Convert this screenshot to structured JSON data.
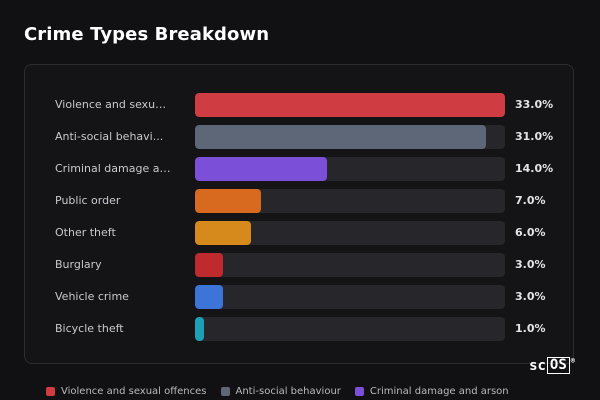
{
  "header": {
    "title": "Crime Types Breakdown"
  },
  "chart_data": {
    "type": "bar",
    "orientation": "horizontal",
    "title": "Crime Types Breakdown",
    "xlim": [
      0,
      33
    ],
    "categories": [
      "Violence and sexua...",
      "Anti-social behavi...",
      "Criminal damage an...",
      "Public order",
      "Other theft",
      "Burglary",
      "Vehicle crime",
      "Bicycle theft"
    ],
    "values": [
      33.0,
      31.0,
      14.0,
      7.0,
      6.0,
      3.0,
      3.0,
      1.0
    ],
    "value_labels": [
      "33.0%",
      "31.0%",
      "14.0%",
      "7.0%",
      "6.0%",
      "3.0%",
      "3.0%",
      "1.0%"
    ],
    "colors": [
      "#cf3d42",
      "#5d6777",
      "#7b4fd8",
      "#d86a1f",
      "#d58a1b",
      "#bf2a2e",
      "#3c74d8",
      "#1ba0b8"
    ],
    "track_color": "#26262b",
    "legend": {
      "placement": "bottom",
      "items": [
        {
          "label": "Violence and sexual offences",
          "color": "#cf3d42"
        },
        {
          "label": "Anti-social behaviour",
          "color": "#5d6777"
        },
        {
          "label": "Criminal damage and arson",
          "color": "#7b4fd8"
        }
      ]
    }
  },
  "brand": {
    "prefix": "sc",
    "boxed": "OS",
    "reg": "®"
  }
}
